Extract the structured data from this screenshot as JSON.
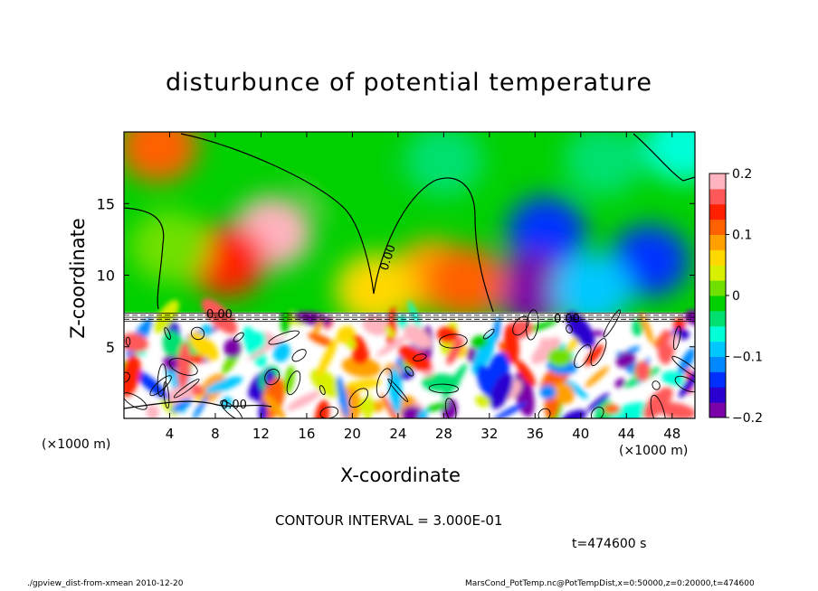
{
  "chart_data": {
    "type": "heatmap",
    "title": "disturbunce of potential temperature",
    "xlabel": "X-coordinate",
    "ylabel": "Z-coordinate",
    "x_unit_left": "(×1000 m)",
    "x_unit_right": "(×1000 m)",
    "xlim": [
      0,
      50
    ],
    "ylim": [
      0,
      20
    ],
    "xticks": [
      4,
      8,
      12,
      16,
      20,
      24,
      28,
      32,
      36,
      40,
      44,
      48
    ],
    "xtick_labels": [
      "4",
      "8",
      "12",
      "16",
      "20",
      "24",
      "28",
      "32",
      "36",
      "40",
      "44",
      "48"
    ],
    "yticks": [
      5,
      10,
      15
    ],
    "ytick_labels": [
      "5",
      "10",
      "15"
    ],
    "colorbar": {
      "min": -0.2,
      "max": 0.2,
      "ticks": [
        0.2,
        0.1,
        0,
        -0.1,
        -0.2
      ],
      "tick_labels": [
        "0.2",
        "0.1",
        "0",
        "−0.1",
        "−0.2"
      ],
      "colors": [
        "#7a00a8",
        "#2a00d0",
        "#0030ff",
        "#0088ff",
        "#00c8ff",
        "#00ffd8",
        "#00e070",
        "#00d000",
        "#70e000",
        "#d8f000",
        "#ffd800",
        "#ffa000",
        "#ff6000",
        "#ff2000",
        "#ff5858",
        "#ffb4c0"
      ]
    },
    "contour_labels": [
      "0.00",
      "0.00",
      "0.00",
      "0.00"
    ],
    "contour_interval_text": "CONTOUR INTERVAL = 3.000E-01",
    "time_text": "t=474600 s",
    "regions": [
      {
        "x": 13,
        "z": 13,
        "value": 0.19
      },
      {
        "x": 9,
        "z": 11,
        "value": 0.14
      },
      {
        "x": 3,
        "z": 19,
        "value": 0.1
      },
      {
        "x": 27,
        "z": 10,
        "value": 0.09
      },
      {
        "x": 4,
        "z": 12,
        "value": 0.02
      },
      {
        "x": 28,
        "z": 18,
        "value": -0.04
      },
      {
        "x": 19,
        "z": 17,
        "value": -0.02
      },
      {
        "x": 37,
        "z": 13,
        "value": -0.15
      },
      {
        "x": 46,
        "z": 11,
        "value": -0.14
      },
      {
        "x": 36,
        "z": 9,
        "value": -0.2
      },
      {
        "x": 42,
        "z": 18,
        "value": -0.05
      },
      {
        "x": 49,
        "z": 19,
        "value": -0.06
      },
      {
        "x": 41,
        "z": 9,
        "value": -0.08
      },
      {
        "x": 22,
        "z": 9,
        "value": 0.06
      },
      {
        "x": 30,
        "z": 9.5,
        "value": 0.12
      }
    ]
  },
  "footer": {
    "left": "./gpview_dist-from-xmean  2010-12-20",
    "right": "MarsCond_PotTemp.nc@PotTempDist,x=0:50000,z=0:20000,t=474600"
  }
}
